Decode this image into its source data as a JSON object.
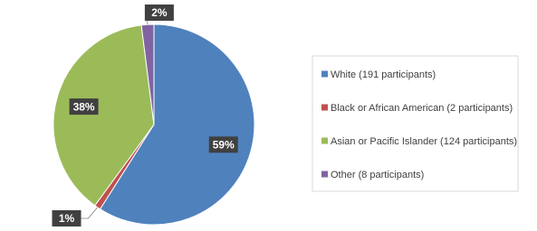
{
  "chart_data": {
    "type": "pie",
    "categories": [
      "White (191 participants)",
      "Black or African American (2 participants)",
      "Asian or Pacific Islander (124 participants)",
      "Other (8 participants)"
    ],
    "values": [
      59,
      1,
      38,
      2
    ],
    "value_labels": [
      "59%",
      "1%",
      "38%",
      "2%"
    ],
    "colors": [
      "#4f81bd",
      "#c0504d",
      "#9bbb59",
      "#8064a2"
    ],
    "legend": "right"
  }
}
